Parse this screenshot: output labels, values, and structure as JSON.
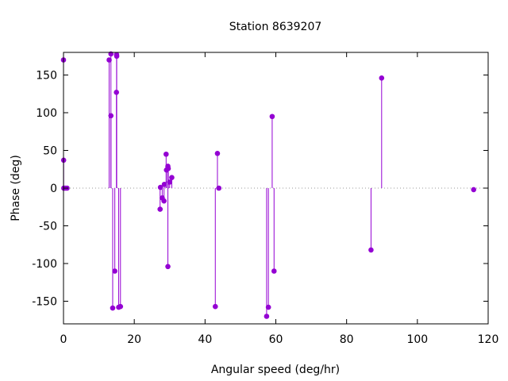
{
  "chart_data": {
    "type": "scatter",
    "title": "Station 8639207",
    "xlabel": "Angular speed (deg/hr)",
    "ylabel": "Phase (deg)",
    "xlim": [
      0,
      120
    ],
    "ylim": [
      -180,
      180
    ],
    "x_ticks": [
      "0",
      "20",
      "40",
      "60",
      "80",
      "100",
      "120"
    ],
    "y_ticks": [
      "-150",
      "-100",
      "-50",
      "0",
      "50",
      "100",
      "150"
    ],
    "grid": false,
    "zero_line": "dotted",
    "style": "impulses with points",
    "color": "#9400d3",
    "points": [
      {
        "x": 0.0,
        "y": 170
      },
      {
        "x": 0.04,
        "y": 37
      },
      {
        "x": 0.08,
        "y": 0
      },
      {
        "x": 0.5,
        "y": 0
      },
      {
        "x": 1.0,
        "y": 0
      },
      {
        "x": 12.9,
        "y": 170
      },
      {
        "x": 13.4,
        "y": 178
      },
      {
        "x": 13.4,
        "y": 96
      },
      {
        "x": 13.9,
        "y": -159
      },
      {
        "x": 14.5,
        "y": -110
      },
      {
        "x": 14.96,
        "y": 127
      },
      {
        "x": 15.0,
        "y": 177
      },
      {
        "x": 15.04,
        "y": 175
      },
      {
        "x": 15.6,
        "y": -158
      },
      {
        "x": 16.1,
        "y": -157
      },
      {
        "x": 27.3,
        "y": -28
      },
      {
        "x": 27.4,
        "y": 1
      },
      {
        "x": 27.9,
        "y": -13
      },
      {
        "x": 28.4,
        "y": -17
      },
      {
        "x": 28.5,
        "y": 5
      },
      {
        "x": 29.0,
        "y": 45
      },
      {
        "x": 29.1,
        "y": 24
      },
      {
        "x": 29.5,
        "y": 29
      },
      {
        "x": 29.5,
        "y": -104
      },
      {
        "x": 29.6,
        "y": 26
      },
      {
        "x": 30.0,
        "y": 8
      },
      {
        "x": 30.6,
        "y": 14
      },
      {
        "x": 42.9,
        "y": -157
      },
      {
        "x": 43.5,
        "y": 46
      },
      {
        "x": 43.9,
        "y": 0
      },
      {
        "x": 57.4,
        "y": -170
      },
      {
        "x": 57.9,
        "y": -158
      },
      {
        "x": 58.97,
        "y": 95
      },
      {
        "x": 59.5,
        "y": -110
      },
      {
        "x": 86.9,
        "y": -82
      },
      {
        "x": 89.9,
        "y": 146
      },
      {
        "x": 115.9,
        "y": -2
      }
    ]
  }
}
